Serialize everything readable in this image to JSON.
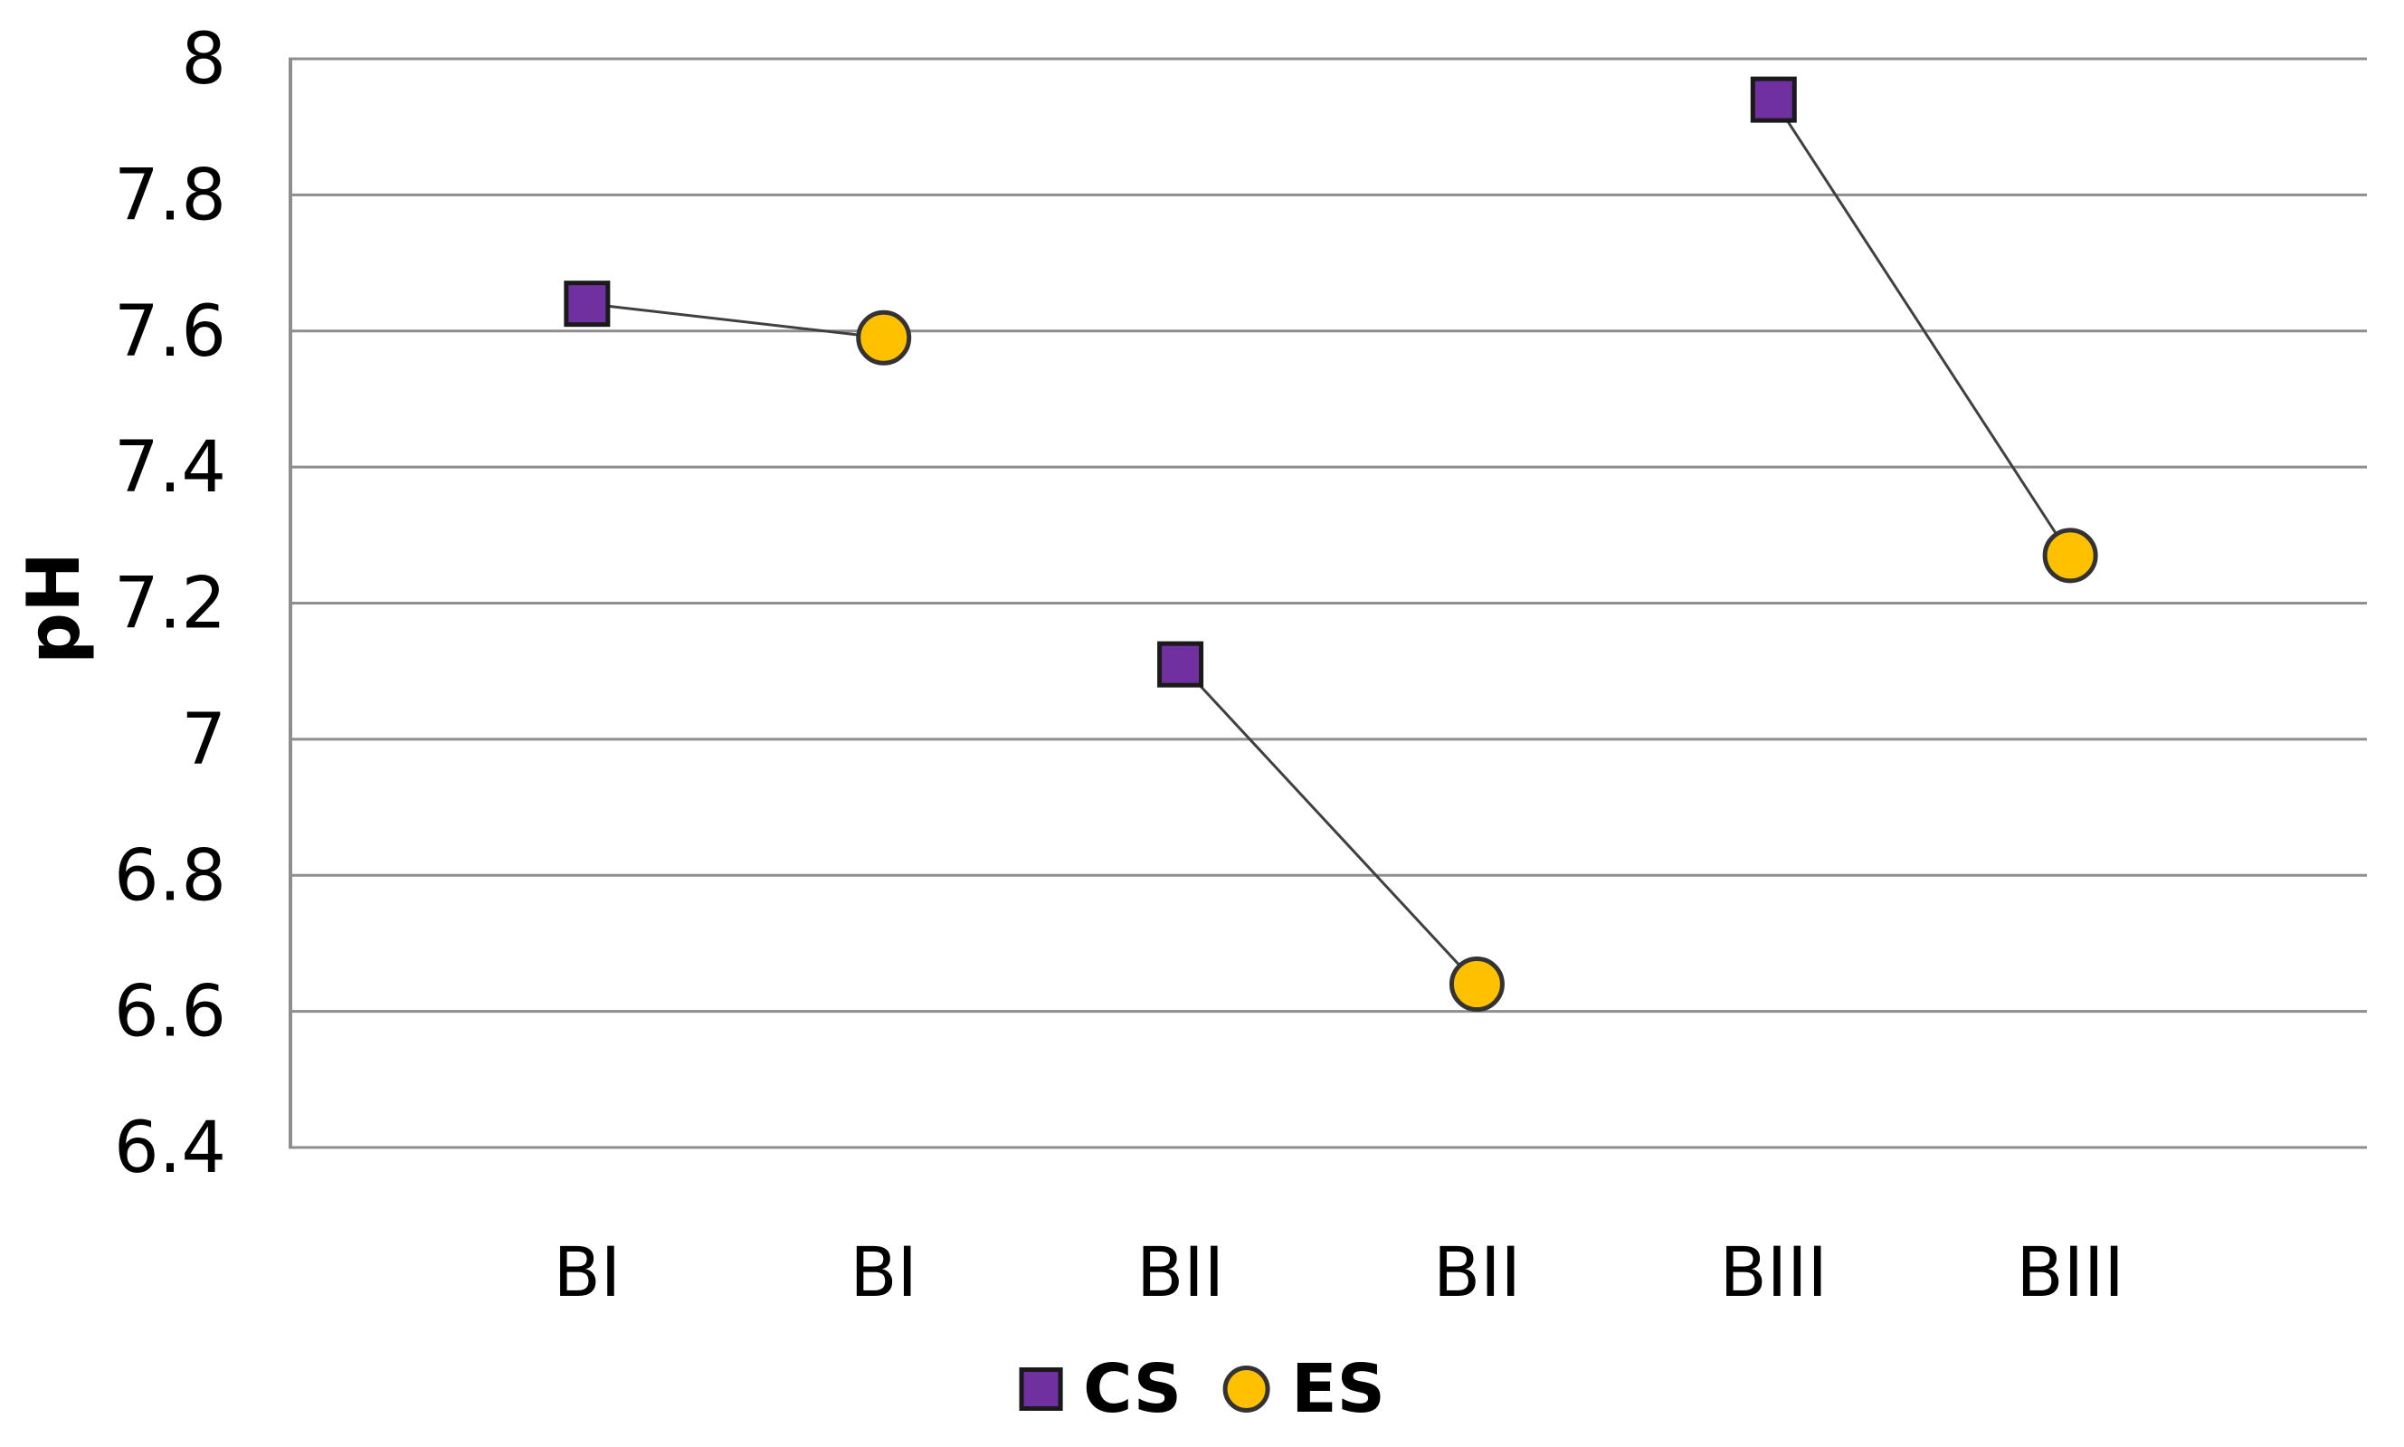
{
  "chart_data": {
    "type": "scatter",
    "title": "",
    "xlabel": "",
    "ylabel": "pH",
    "ylim": [
      6.4,
      8.0
    ],
    "ytick_step": 0.2,
    "ytick_labels": [
      "8",
      "7.8",
      "7.6",
      "7.4",
      "7.2",
      "7",
      "6.8",
      "6.6",
      "6.4"
    ],
    "grid": "horizontal",
    "legend_position": "bottom-center",
    "x_slot_count": 7,
    "categories": [
      "BI",
      "BI",
      "BII",
      "BII",
      "BIII",
      "BIII"
    ],
    "series": [
      {
        "name": "CS",
        "marker": "square",
        "color": "#7030A0",
        "marker_border": "#1a1a1a",
        "points": [
          {
            "slot": 1,
            "x_label": "BI",
            "y": 7.64
          },
          {
            "slot": 3,
            "x_label": "BII",
            "y": 7.11
          },
          {
            "slot": 5,
            "x_label": "BIII",
            "y": 7.94
          }
        ]
      },
      {
        "name": "ES",
        "marker": "circle",
        "color": "#FFC000",
        "marker_border": "#333333",
        "points": [
          {
            "slot": 2,
            "x_label": "BI",
            "y": 7.59
          },
          {
            "slot": 4,
            "x_label": "BII",
            "y": 6.64
          },
          {
            "slot": 6,
            "x_label": "BIII",
            "y": 7.27
          }
        ]
      }
    ],
    "connectors": [
      {
        "from_series": 0,
        "from_slot": 1,
        "to_series": 1,
        "to_slot": 2
      },
      {
        "from_series": 0,
        "from_slot": 3,
        "to_series": 1,
        "to_slot": 4
      },
      {
        "from_series": 0,
        "from_slot": 5,
        "to_series": 1,
        "to_slot": 6
      }
    ],
    "colors": {
      "gridline": "#8e8e8e",
      "axis": "#8e8e8e",
      "connector": "#404040",
      "text": "#000000"
    }
  }
}
